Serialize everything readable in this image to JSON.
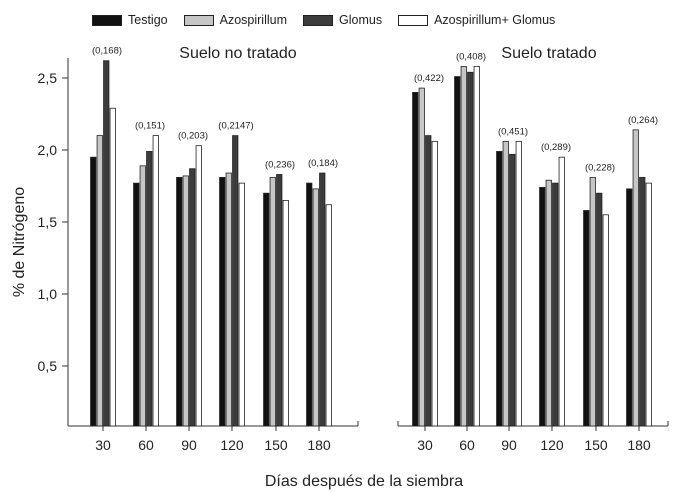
{
  "legend": [
    {
      "name": "Testigo",
      "color": "#111111"
    },
    {
      "name": "Azospirillum",
      "color": "#c6c6c6"
    },
    {
      "name": "Glomus",
      "color": "#3c3c3c"
    },
    {
      "name": "Azospirillum+ Glomus",
      "color": "#ffffff"
    }
  ],
  "chart_data": [
    {
      "type": "bar",
      "title": "Suelo no tratado",
      "categories": [
        "30",
        "60",
        "90",
        "120",
        "150",
        "180"
      ],
      "ylabel": "% de Nitrógeno",
      "xlabel": "Días después de la siembra",
      "ylim": [
        0,
        2.75
      ],
      "yticks": [
        "0,5",
        "1,0",
        "1,5",
        "2,0",
        "2,5"
      ],
      "annotations": [
        "(0,168)",
        "(0,151)",
        "(0,203)",
        "(0,2147)",
        "(0,236)",
        "(0,184)"
      ],
      "series": [
        {
          "name": "Testigo",
          "values": [
            1.95,
            1.77,
            1.81,
            1.81,
            1.7,
            1.77
          ]
        },
        {
          "name": "Azospirillum",
          "values": [
            2.1,
            1.89,
            1.82,
            1.84,
            1.81,
            1.73
          ]
        },
        {
          "name": "Glomus",
          "values": [
            2.62,
            1.99,
            1.87,
            2.1,
            1.83,
            1.84
          ]
        },
        {
          "name": "Azospirillum+ Glomus",
          "values": [
            2.29,
            2.1,
            2.03,
            1.77,
            1.65,
            1.62
          ]
        }
      ]
    },
    {
      "type": "bar",
      "title": "Suelo tratado",
      "categories": [
        "30",
        "60",
        "90",
        "120",
        "150",
        "180"
      ],
      "ylim": [
        0,
        2.75
      ],
      "annotations": [
        "(0,422)",
        "(0,408)",
        "(0,451)",
        "(0,289)",
        "(0,228)",
        "(0,264)"
      ],
      "series": [
        {
          "name": "Testigo",
          "values": [
            2.4,
            2.51,
            1.99,
            1.74,
            1.58,
            1.73
          ]
        },
        {
          "name": "Azospirillum",
          "values": [
            2.43,
            2.58,
            2.06,
            1.79,
            1.81,
            2.14
          ]
        },
        {
          "name": "Glomus",
          "values": [
            2.1,
            2.54,
            1.97,
            1.77,
            1.7,
            1.81
          ]
        },
        {
          "name": "Azospirillum+ Glomus",
          "values": [
            2.06,
            2.58,
            2.06,
            1.95,
            1.55,
            1.77
          ]
        }
      ]
    }
  ]
}
